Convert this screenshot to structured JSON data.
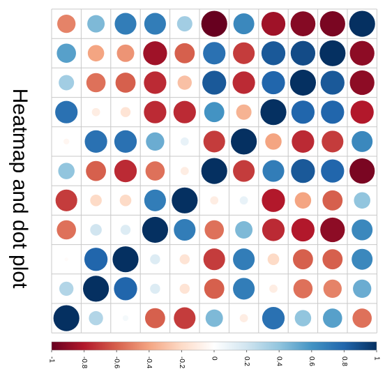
{
  "chart_data": {
    "type": "heatmap",
    "title": "Heatmap and dot plot",
    "subtitle": "",
    "colorbar": {
      "range": [
        -1,
        1
      ],
      "ticks": [
        "-1",
        "-0.8",
        "-0.6",
        "-0.4",
        "-0.2",
        "0",
        "0.2",
        "0.4",
        "0.6",
        "0.8",
        "1"
      ],
      "colors": [
        "#67001f",
        "#b2182b",
        "#d6604d",
        "#f4a582",
        "#fddbc7",
        "#ffffff",
        "#d1e5f0",
        "#92c5de",
        "#4393c3",
        "#2166ac",
        "#053061"
      ]
    },
    "grid": true,
    "rows": 11,
    "cols": 11,
    "values": [
      [
        -0.5,
        0.45,
        0.7,
        0.7,
        0.35,
        -1.0,
        0.65,
        -0.85,
        -0.92,
        -0.95,
        1.0
      ],
      [
        0.55,
        -0.4,
        -0.45,
        -0.85,
        -0.6,
        0.75,
        -0.7,
        0.85,
        0.9,
        1.0,
        -0.9
      ],
      [
        0.35,
        -0.55,
        -0.6,
        -0.75,
        -0.3,
        0.85,
        -0.75,
        0.8,
        1.0,
        0.85,
        -0.9
      ],
      [
        0.75,
        -0.1,
        -0.15,
        -0.75,
        -0.75,
        0.6,
        -0.35,
        1.0,
        0.8,
        0.8,
        -0.8
      ],
      [
        -0.05,
        0.75,
        0.75,
        0.5,
        0.1,
        -0.7,
        1.0,
        -0.4,
        -0.75,
        -0.7,
        0.65
      ],
      [
        0.4,
        -0.6,
        -0.75,
        -0.55,
        -0.1,
        1.0,
        -0.7,
        0.7,
        0.85,
        0.8,
        -0.95
      ],
      [
        -0.7,
        -0.2,
        -0.2,
        0.7,
        1.0,
        -0.1,
        0.1,
        -0.8,
        -0.4,
        -0.6,
        0.4
      ],
      [
        -0.55,
        0.2,
        0.15,
        1.0,
        0.7,
        -0.55,
        0.45,
        -0.75,
        -0.8,
        -0.9,
        0.65
      ],
      [
        -0.02,
        0.8,
        1.0,
        0.15,
        -0.15,
        -0.7,
        0.7,
        -0.2,
        -0.6,
        -0.6,
        0.65
      ],
      [
        0.3,
        1.0,
        0.8,
        0.15,
        -0.15,
        -0.6,
        0.7,
        -0.1,
        -0.55,
        -0.5,
        0.5
      ],
      [
        1.0,
        0.3,
        0.05,
        -0.6,
        -0.7,
        0.45,
        -0.1,
        0.75,
        0.4,
        0.55,
        -0.55
      ]
    ]
  }
}
